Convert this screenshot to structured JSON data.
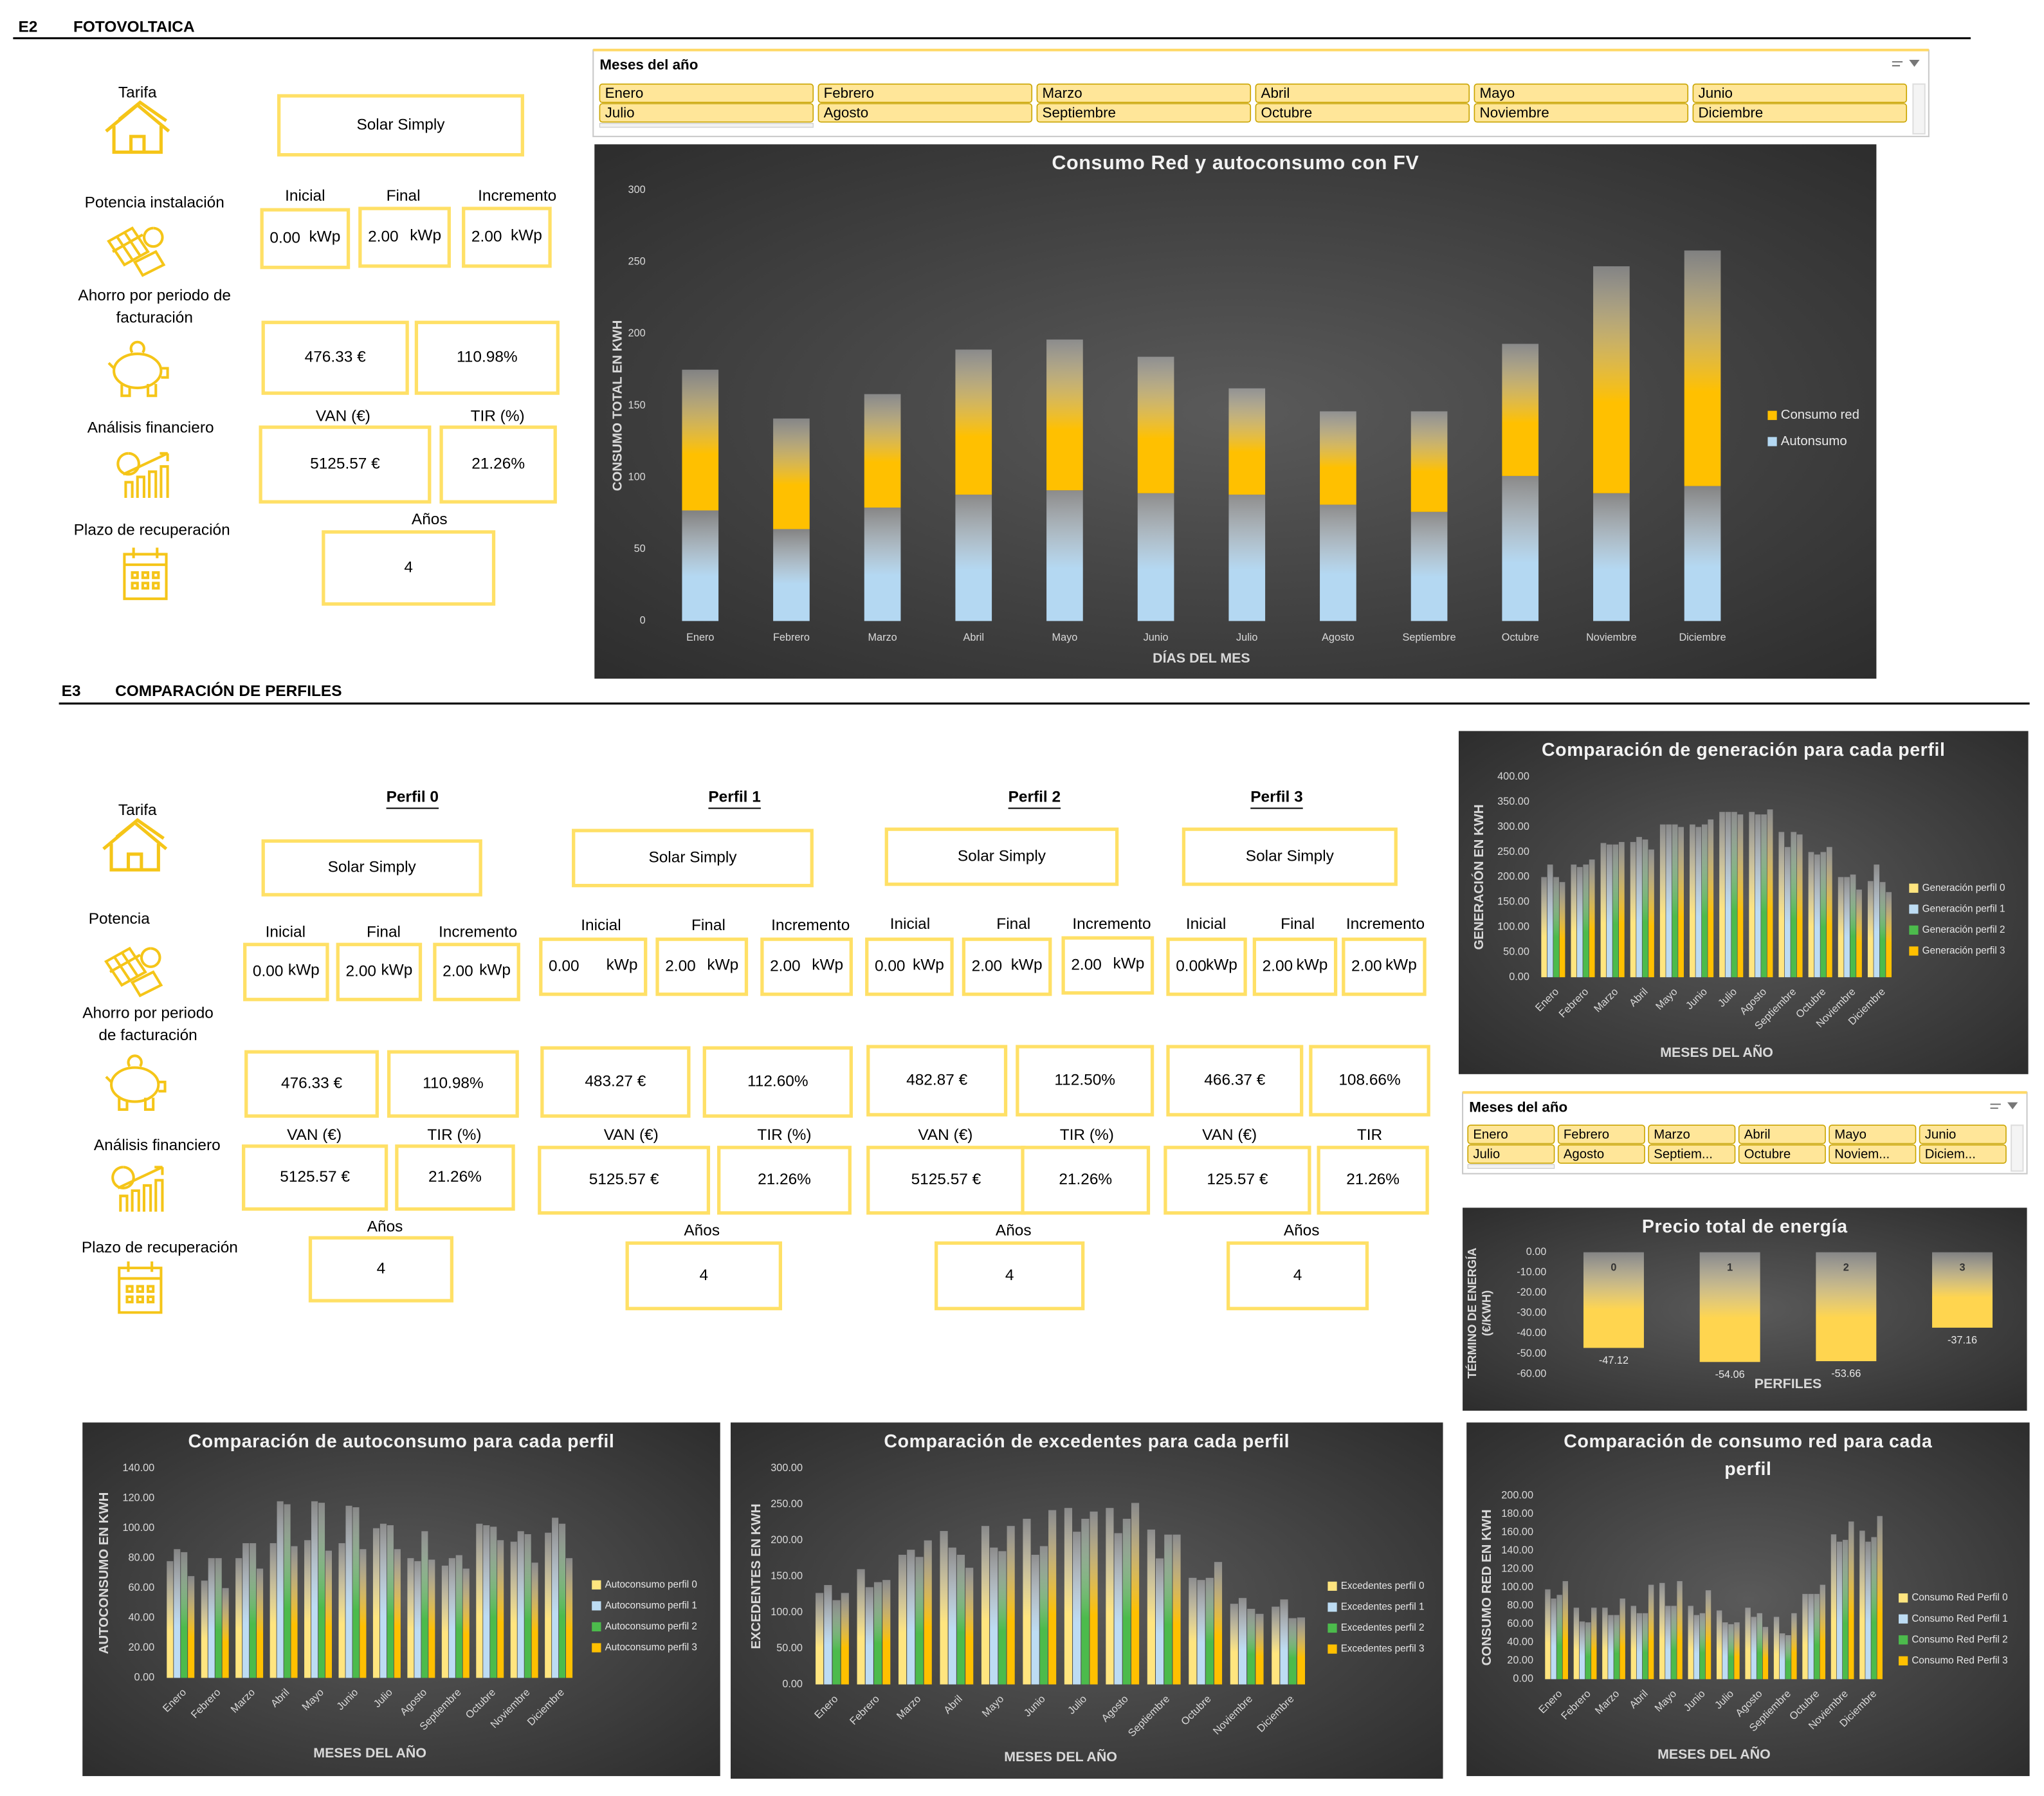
{
  "sections": [
    {
      "code": "E2",
      "title": "FOTOVOLTAICA"
    },
    {
      "code": "E3",
      "title": "COMPARACIÓN DE PERFILES"
    }
  ],
  "e2": {
    "labels": {
      "tarifa": "Tarifa",
      "potencia": "Potencia instalación",
      "ahorro": [
        "Ahorro por periodo de",
        "facturación"
      ],
      "analisis": "Análisis financiero",
      "plazo": "Plazo de recuperación"
    },
    "profile": {
      "tarifa": "Solar Simply",
      "potencia": {
        "inicial_label": "Inicial",
        "inicial": "0.00",
        "final_label": "Final",
        "final": "2.00",
        "incremento_label": "Incremento",
        "incremento": "2.00",
        "unit": "kWp"
      },
      "ahorro": "476.33 €",
      "ahorro_pct": "110.98%",
      "van_label": "VAN (€)",
      "van": "5125.57 €",
      "tir_label": "TIR (%)",
      "tir": "21.26%",
      "anos_label": "Años",
      "anos": "4"
    }
  },
  "e3": {
    "labels": {
      "tarifa": "Tarifa",
      "potencia": "Potencia",
      "ahorro": [
        "Ahorro por periodo",
        "de facturación"
      ],
      "analisis": "Análisis financiero",
      "plazo": "Plazo de recuperación"
    },
    "profiles": [
      {
        "name": "Perfil 0",
        "tarifa": "Solar Simply",
        "potencia": {
          "inicial_label": "Inicial",
          "inicial": "0.00",
          "final_label": "Final",
          "final": "2.00",
          "incremento_label": "Incremento",
          "incremento": "2.00",
          "unit": "kWp"
        },
        "ahorro": "476.33 €",
        "ahorro_pct": "110.98%",
        "van_label": "VAN (€)",
        "van": "5125.57 €",
        "tir_label": "TIR (%)",
        "tir": "21.26%",
        "anos_label": "Años",
        "anos": "4"
      },
      {
        "name": "Perfil 1",
        "tarifa": "Solar Simply",
        "potencia": {
          "inicial_label": "Inicial",
          "inicial": "0.00",
          "final_label": "Final",
          "final": "2.00",
          "incremento_label": "Incremento",
          "incremento": "2.00",
          "unit": "kWp"
        },
        "ahorro": "483.27 €",
        "ahorro_pct": "112.60%",
        "van_label": "VAN (€)",
        "van": "5125.57 €",
        "tir_label": "TIR (%)",
        "tir": "21.26%",
        "anos_label": "Años",
        "anos": "4"
      },
      {
        "name": "Perfil 2",
        "tarifa": "Solar Simply",
        "potencia": {
          "inicial_label": "Inicial",
          "inicial": "0.00",
          "final_label": "Final",
          "final": "2.00",
          "incremento_label": "Incremento",
          "incremento": "2.00",
          "unit": "kWp"
        },
        "ahorro": "482.87 €",
        "ahorro_pct": "112.50%",
        "van_label": "VAN (€)",
        "van": "5125.57 €",
        "tir_label": "TIR (%)",
        "tir": "21.26%",
        "anos_label": "Años",
        "anos": "4"
      },
      {
        "name": "Perfil 3",
        "tarifa": "Solar Simply",
        "potencia": {
          "inicial_label": "Inicial",
          "inicial": "0.00",
          "final_label": "Final",
          "final": "2.00",
          "incremento_label": "Incremento",
          "incremento": "2.00",
          "unit": "kWp"
        },
        "ahorro": "466.37 €",
        "ahorro_pct": "108.66%",
        "van_label": "VAN (€)",
        "van": "125.57 €",
        "tir_label": "TIR",
        "tir": "21.26%",
        "anos_label": "Años",
        "anos": "4"
      }
    ]
  },
  "slicers": [
    {
      "title": "Meses del año",
      "items": [
        "Enero",
        "Febrero",
        "Marzo",
        "Abril",
        "Mayo",
        "Junio",
        "Julio",
        "Agosto",
        "Septiembre",
        "Octubre",
        "Noviembre",
        "Diciembre"
      ]
    },
    {
      "title": "Meses del año",
      "items": [
        "Enero",
        "Febrero",
        "Marzo",
        "Abril",
        "Mayo",
        "Junio",
        "Julio",
        "Agosto",
        "Septiem...",
        "Octubre",
        "Noviem...",
        "Diciem..."
      ]
    }
  ],
  "chart_data": [
    {
      "type": "stacked_bar",
      "title": "Consumo Red y autoconsumo con FV",
      "categories": [
        "Enero",
        "Febrero",
        "Marzo",
        "Abril",
        "Mayo",
        "Junio",
        "Julio",
        "Agosto",
        "Septiembre",
        "Octubre",
        "Noviembre",
        "Diciembre"
      ],
      "series": [
        {
          "name": "Consumo red",
          "color": "#ffc000",
          "values": [
            98,
            77,
            79,
            101,
            105,
            95,
            74,
            65,
            70,
            92,
            158,
            164
          ]
        },
        {
          "name": "Autonsumo",
          "color": "#b4d8f2",
          "values": [
            77,
            64,
            79,
            88,
            91,
            89,
            88,
            81,
            76,
            101,
            89,
            94
          ]
        }
      ],
      "ylim": [
        0,
        300
      ],
      "yticks": [
        0,
        50,
        100,
        150,
        200,
        250,
        300
      ],
      "y_label": "CONSUMO TOTAL EN KWH",
      "x_label": "DÍAS DEL MES",
      "legend": "right"
    },
    {
      "type": "bar",
      "title": "Comparación de generación para cada perfil",
      "categories": [
        "Enero",
        "Febrero",
        "Marzo",
        "Abril",
        "Mayo",
        "Junio",
        "Julio",
        "Agosto",
        "Septiembre",
        "Octubre",
        "Noviembre",
        "Diciembre"
      ],
      "series": [
        {
          "name": "Generación perfil 0",
          "color": "#ffe57f",
          "values": [
            200,
            225,
            268,
            270,
            305,
            305,
            330,
            330,
            290,
            250,
            200,
            192
          ]
        },
        {
          "name": "Generación perfil 1",
          "color": "#bddcf3",
          "values": [
            225,
            220,
            265,
            280,
            305,
            300,
            330,
            325,
            260,
            245,
            200,
            225
          ]
        },
        {
          "name": "Generación perfil 2",
          "color": "#4cbb4c",
          "values": [
            200,
            225,
            265,
            275,
            305,
            305,
            330,
            325,
            290,
            250,
            205,
            190
          ]
        },
        {
          "name": "Generación perfil 3",
          "color": "#ffc000",
          "values": [
            190,
            235,
            270,
            255,
            300,
            315,
            325,
            335,
            285,
            260,
            175,
            170
          ]
        }
      ],
      "ylim": [
        0,
        400
      ],
      "yticks": [
        {
          "value": 0,
          "label": "0.00"
        },
        {
          "value": 50,
          "label": "50.00"
        },
        {
          "value": 100,
          "label": "100.00"
        },
        {
          "value": 150,
          "label": "150.00"
        },
        {
          "value": 200,
          "label": "200.00"
        },
        {
          "value": 250,
          "label": "250.00"
        },
        {
          "value": 300,
          "label": "300.00"
        },
        {
          "value": 350,
          "label": "350.00"
        },
        {
          "value": 400,
          "label": "400.00"
        }
      ],
      "y_label": "GENERACIÓN EN KWH",
      "x_label": "MESES DEL AÑO",
      "legend": "right"
    },
    {
      "type": "bar",
      "title": "Precio total de energía",
      "categories": [
        "0",
        "1",
        "2",
        "3"
      ],
      "values": [
        -47.12,
        -54.06,
        -53.66,
        -37.16
      ],
      "color": "#ffd54f",
      "ylim": [
        -60,
        0
      ],
      "yticks": [
        {
          "value": 0,
          "label": "0.00"
        },
        {
          "value": -10,
          "label": "-10.00"
        },
        {
          "value": -20,
          "label": "-20.00"
        },
        {
          "value": -30,
          "label": "-30.00"
        },
        {
          "value": -40,
          "label": "-40.00"
        },
        {
          "value": -50,
          "label": "-50.00"
        },
        {
          "value": -60,
          "label": "-60.00"
        }
      ],
      "y_label": [
        "TÉRMINO DE ENERGÍA",
        "(€/KWH)"
      ],
      "x_label": "PERFILES"
    },
    {
      "type": "bar",
      "title": "Comparación de autoconsumo para cada perfil",
      "categories": [
        "Enero",
        "Febrero",
        "Marzo",
        "Abril",
        "Mayo",
        "Junio",
        "Julio",
        "Agosto",
        "Septiembre",
        "Octubre",
        "Noviembre",
        "Diciembre"
      ],
      "series": [
        {
          "name": "Autoconsumo perfil 0",
          "color": "#ffe57f",
          "values": [
            78,
            65,
            80,
            90,
            92,
            90,
            100,
            80,
            75,
            103,
            91,
            97
          ]
        },
        {
          "name": "Autoconsumo perfil 1",
          "color": "#bddcf3",
          "values": [
            86,
            80,
            90,
            118,
            118,
            115,
            103,
            78,
            80,
            102,
            98,
            107
          ]
        },
        {
          "name": "Autoconsumo perfil 2",
          "color": "#4cbb4c",
          "values": [
            84,
            80,
            90,
            116,
            117,
            114,
            102,
            98,
            82,
            101,
            96,
            103
          ]
        },
        {
          "name": "Autoconsumo perfil 3",
          "color": "#ffc000",
          "values": [
            68,
            60,
            73,
            88,
            85,
            86,
            86,
            79,
            73,
            92,
            77,
            80
          ]
        }
      ],
      "ylim": [
        0,
        140
      ],
      "yticks": [
        {
          "value": 0,
          "label": "0.00"
        },
        {
          "value": 20,
          "label": "20.00"
        },
        {
          "value": 40,
          "label": "40.00"
        },
        {
          "value": 60,
          "label": "60.00"
        },
        {
          "value": 80,
          "label": "80.00"
        },
        {
          "value": 100,
          "label": "100.00"
        },
        {
          "value": 120,
          "label": "120.00"
        },
        {
          "value": 140,
          "label": "140.00"
        }
      ],
      "y_label": "AUTOCONSUMO EN KWH",
      "x_label": "MESES DEL AÑO",
      "legend": "right"
    },
    {
      "type": "bar",
      "title": "Comparación de excedentes para cada perfil",
      "categories": [
        "Enero",
        "Febrero",
        "Marzo",
        "Abril",
        "Mayo",
        "Junio",
        "Julio",
        "Agosto",
        "Septiembre",
        "Octubre",
        "Noviembre",
        "Diciembre"
      ],
      "series": [
        {
          "name": "Excedentes perfil 0",
          "color": "#ffe57f",
          "values": [
            127,
            160,
            180,
            213,
            220,
            230,
            245,
            245,
            215,
            148,
            112,
            108
          ]
        },
        {
          "name": "Excedentes perfil 1",
          "color": "#bddcf3",
          "values": [
            138,
            135,
            187,
            190,
            190,
            180,
            212,
            210,
            175,
            145,
            120,
            118
          ]
        },
        {
          "name": "Excedentes perfil 2",
          "color": "#4cbb4c",
          "values": [
            117,
            142,
            177,
            180,
            185,
            192,
            230,
            230,
            208,
            148,
            105,
            92
          ]
        },
        {
          "name": "Excedentes perfil 3",
          "color": "#ffc000",
          "values": [
            127,
            145,
            200,
            162,
            220,
            242,
            240,
            252,
            208,
            170,
            98,
            93
          ]
        }
      ],
      "ylim": [
        0,
        300
      ],
      "yticks": [
        {
          "value": 0,
          "label": "0.00"
        },
        {
          "value": 50,
          "label": "50.00"
        },
        {
          "value": 100,
          "label": "100.00"
        },
        {
          "value": 150,
          "label": "150.00"
        },
        {
          "value": 200,
          "label": "200.00"
        },
        {
          "value": 250,
          "label": "250.00"
        },
        {
          "value": 300,
          "label": "300.00"
        }
      ],
      "y_label": "EXCEDENTES EN KWH",
      "x_label": "MESES DEL AÑO",
      "legend": "right"
    },
    {
      "type": "bar",
      "title": "Comparación de consumo red para cada perfil",
      "categories": [
        "Enero",
        "Febrero",
        "Marzo",
        "Abril",
        "Mayo",
        "Junio",
        "Julio",
        "Agosto",
        "Septiembre",
        "Octubre",
        "Noviembre",
        "Diciembre"
      ],
      "series": [
        {
          "name": "Consumo Red Perfil 0",
          "color": "#ffe57f",
          "values": [
            98,
            78,
            78,
            80,
            105,
            80,
            75,
            78,
            68,
            93,
            158,
            162
          ]
        },
        {
          "name": "Consumo Red Perfil 1",
          "color": "#bddcf3",
          "values": [
            88,
            63,
            70,
            72,
            80,
            70,
            62,
            68,
            50,
            93,
            150,
            150
          ]
        },
        {
          "name": "Consumo Red Perfil 2",
          "color": "#4cbb4c",
          "values": [
            92,
            62,
            70,
            72,
            80,
            72,
            60,
            72,
            48,
            93,
            152,
            155
          ]
        },
        {
          "name": "Consumo Red Perfil 3",
          "color": "#ffc000",
          "values": [
            107,
            78,
            88,
            103,
            107,
            97,
            62,
            57,
            72,
            103,
            172,
            178
          ]
        }
      ],
      "ylim": [
        0,
        200
      ],
      "yticks": [
        {
          "value": 0,
          "label": "0.00"
        },
        {
          "value": 20,
          "label": "20.00"
        },
        {
          "value": 40,
          "label": "40.00"
        },
        {
          "value": 60,
          "label": "60.00"
        },
        {
          "value": 80,
          "label": "80.00"
        },
        {
          "value": 100,
          "label": "100.00"
        },
        {
          "value": 120,
          "label": "120.00"
        },
        {
          "value": 140,
          "label": "140.00"
        },
        {
          "value": 160,
          "label": "160.00"
        },
        {
          "value": 180,
          "label": "180.00"
        },
        {
          "value": 200,
          "label": "200.00"
        }
      ],
      "y_label": "CONSUMO RED EN KWH",
      "x_label": "MESES DEL AÑO",
      "legend": "right"
    }
  ]
}
